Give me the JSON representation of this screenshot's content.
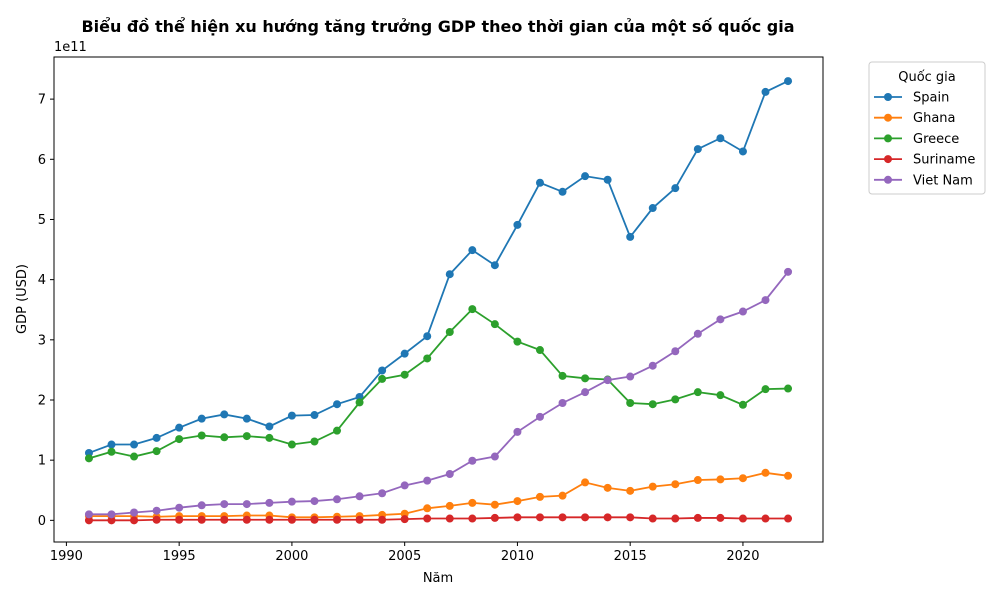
{
  "chart_data": {
    "type": "line",
    "title": "Biểu đồ thể hiện xu hướng tăng trưởng GDP theo thời gian của một số quốc gia",
    "xlabel": "Năm",
    "ylabel": "GDP (USD)",
    "offset_text": "1e11",
    "ylim_label": [
      -0.36,
      7.7
    ],
    "xlim": [
      1989.45,
      2023.55
    ],
    "xticks": [
      1990,
      1995,
      2000,
      2005,
      2010,
      2015,
      2020
    ],
    "yticks": [
      0,
      1,
      2,
      3,
      4,
      5,
      6,
      7
    ],
    "y_unit": 100000000000,
    "legend_title": "Quốc gia",
    "legend_position": "upper right, outside plot",
    "grid": false,
    "x": [
      1991,
      1992,
      1993,
      1994,
      1995,
      1996,
      1997,
      1998,
      1999,
      2000,
      2001,
      2002,
      2003,
      2004,
      2005,
      2006,
      2007,
      2008,
      2009,
      2010,
      2011,
      2012,
      2013,
      2014,
      2015,
      2016,
      2017,
      2018,
      2019,
      2020,
      2021,
      2022
    ],
    "series": [
      {
        "name": "Spain",
        "color": "#1f77b4",
        "values": [
          1.12,
          1.26,
          1.26,
          1.37,
          1.54,
          1.69,
          1.76,
          1.69,
          1.56,
          1.74,
          1.75,
          1.93,
          2.05,
          2.49,
          2.77,
          3.06,
          4.09,
          4.49,
          4.24,
          4.91,
          5.61,
          5.46,
          5.72,
          5.66,
          4.71,
          5.19,
          5.52,
          6.17,
          6.35,
          6.13,
          7.12,
          7.3
        ]
      },
      {
        "name": "Ghana",
        "color": "#ff7f0e",
        "values": [
          0.07,
          0.07,
          0.07,
          0.06,
          0.07,
          0.07,
          0.07,
          0.08,
          0.08,
          0.05,
          0.05,
          0.06,
          0.07,
          0.09,
          0.11,
          0.2,
          0.24,
          0.29,
          0.26,
          0.32,
          0.39,
          0.41,
          0.63,
          0.54,
          0.49,
          0.56,
          0.6,
          0.67,
          0.68,
          0.7,
          0.79,
          0.74
        ]
      },
      {
        "name": "Greece",
        "color": "#2ca02c",
        "values": [
          1.03,
          1.14,
          1.06,
          1.15,
          1.35,
          1.41,
          1.38,
          1.4,
          1.37,
          1.26,
          1.31,
          1.49,
          1.96,
          2.35,
          2.42,
          2.69,
          3.13,
          3.51,
          3.26,
          2.97,
          2.83,
          2.4,
          2.36,
          2.34,
          1.95,
          1.93,
          2.01,
          2.13,
          2.08,
          1.92,
          2.18,
          2.19
        ]
      },
      {
        "name": "Suriname",
        "color": "#d62728",
        "values": [
          0.0,
          0.0,
          0.0,
          0.01,
          0.01,
          0.01,
          0.01,
          0.01,
          0.01,
          0.01,
          0.01,
          0.01,
          0.01,
          0.01,
          0.02,
          0.03,
          0.03,
          0.03,
          0.04,
          0.05,
          0.05,
          0.05,
          0.05,
          0.05,
          0.05,
          0.03,
          0.03,
          0.04,
          0.04,
          0.03,
          0.03,
          0.03
        ]
      },
      {
        "name": "Viet Nam",
        "color": "#9467bd",
        "values": [
          0.1,
          0.1,
          0.13,
          0.16,
          0.21,
          0.25,
          0.27,
          0.27,
          0.29,
          0.31,
          0.32,
          0.35,
          0.4,
          0.45,
          0.58,
          0.66,
          0.77,
          0.99,
          1.06,
          1.47,
          1.72,
          1.95,
          2.13,
          2.33,
          2.39,
          2.57,
          2.81,
          3.1,
          3.34,
          3.47,
          3.66,
          4.13
        ]
      }
    ]
  }
}
